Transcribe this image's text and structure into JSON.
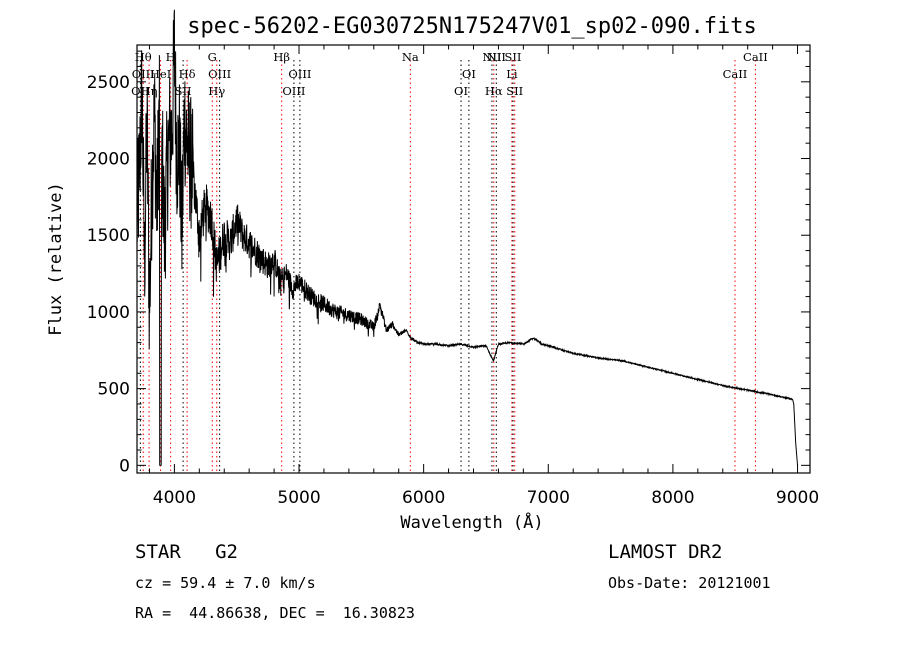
{
  "chart_data": {
    "type": "line",
    "title": "spec-56202-EG030725N175247V01_sp02-090.fits",
    "xlabel": "Wavelength (Å)",
    "ylabel": "Flux (relative)",
    "xlim": [
      3700,
      9100
    ],
    "ylim": [
      -50,
      2740
    ],
    "xticks": [
      4000,
      5000,
      6000,
      7000,
      8000,
      9000
    ],
    "yticks": [
      0,
      500,
      1000,
      1500,
      2000,
      2500
    ],
    "grid": false,
    "series": [
      {
        "x": [
          3700,
          3720,
          3740,
          3760,
          3780,
          3800,
          3820,
          3840,
          3860,
          3880,
          3890,
          3900,
          3920,
          3940,
          3960,
          3980,
          4000,
          4020,
          4040,
          4060,
          4080,
          4100,
          4150,
          4200,
          4250,
          4300,
          4340,
          4400,
          4450,
          4500,
          4550,
          4600,
          4650,
          4700,
          4750,
          4800,
          4850,
          4900,
          4950,
          5000,
          5100,
          5200,
          5300,
          5400,
          5500,
          5600,
          5650,
          5700,
          5750,
          5800,
          5860,
          5900,
          5950,
          6000,
          6100,
          6200,
          6300,
          6400,
          6500,
          6560,
          6600,
          6700,
          6800,
          6880,
          6950,
          7000,
          7200,
          7400,
          7600,
          7800,
          8000,
          8200,
          8400,
          8600,
          8800,
          8960,
          8970,
          8985,
          9000
        ],
        "y": [
          1600,
          1900,
          2450,
          1300,
          2250,
          1000,
          1850,
          2300,
          1650,
          2400,
          0,
          2100,
          1500,
          1900,
          2150,
          2150,
          2700,
          2000,
          2100,
          1500,
          2300,
          2100,
          1900,
          1500,
          1700,
          1600,
          1300,
          1500,
          1450,
          1600,
          1500,
          1450,
          1400,
          1350,
          1300,
          1350,
          1200,
          1250,
          1150,
          1200,
          1100,
          1050,
          1000,
          980,
          950,
          900,
          1050,
          880,
          920,
          850,
          880,
          830,
          800,
          790,
          790,
          780,
          790,
          770,
          780,
          680,
          790,
          800,
          790,
          830,
          790,
          780,
          730,
          700,
          680,
          640,
          600,
          560,
          520,
          490,
          460,
          430,
          400,
          150,
          0
        ],
        "noise": [
          0,
          0,
          0,
          0,
          0,
          0,
          0,
          0,
          0,
          0,
          0,
          0,
          0,
          0,
          0,
          0,
          0,
          0,
          0,
          0,
          0,
          0,
          140,
          150,
          150,
          140,
          140,
          130,
          125,
          120,
          110,
          105,
          100,
          95,
          90,
          85,
          80,
          75,
          70,
          65,
          60,
          55,
          50,
          45,
          40,
          35,
          30,
          25,
          20,
          15,
          12,
          10,
          8,
          6,
          6,
          5,
          5,
          5,
          5,
          5,
          5,
          5,
          5,
          5,
          5,
          5,
          4,
          4,
          4,
          4,
          4,
          4,
          4,
          4,
          4,
          4,
          0,
          0,
          0
        ]
      }
    ],
    "line_marks": [
      {
        "x": 3727,
        "labels": [
          "OII"
        ],
        "rows": [
          2
        ]
      },
      {
        "x": 3750,
        "labels": [
          "Hθ",
          "OIII"
        ],
        "rows": [
          0,
          1
        ]
      },
      {
        "x": 3797,
        "labels": [
          "Hη"
        ],
        "rows": [
          2
        ]
      },
      {
        "x": 3889,
        "labels": [
          "HeI"
        ],
        "rows": [
          1
        ]
      },
      {
        "x": 3970,
        "labels": [
          "H"
        ],
        "rows": [
          0
        ]
      },
      {
        "x": 4070,
        "labels": [
          "SII"
        ],
        "rows": [
          2
        ]
      },
      {
        "x": 4102,
        "labels": [
          "Hδ"
        ],
        "rows": [
          1
        ]
      },
      {
        "x": 4304,
        "labels": [
          "G"
        ],
        "rows": [
          0
        ]
      },
      {
        "x": 4340,
        "labels": [
          "Hγ"
        ],
        "rows": [
          2
        ]
      },
      {
        "x": 4363,
        "labels": [
          "OIII"
        ],
        "rows": [
          1
        ]
      },
      {
        "x": 4861,
        "labels": [
          "Hβ"
        ],
        "rows": [
          0
        ]
      },
      {
        "x": 4959,
        "labels": [
          "OIII"
        ],
        "rows": [
          2
        ]
      },
      {
        "x": 5007,
        "labels": [
          "OIII"
        ],
        "rows": [
          1
        ]
      },
      {
        "x": 5893,
        "labels": [
          "Na"
        ],
        "rows": [
          0
        ]
      },
      {
        "x": 6300,
        "labels": [
          "OI"
        ],
        "rows": [
          2
        ]
      },
      {
        "x": 6363,
        "labels": [
          "OI"
        ],
        "rows": [
          1
        ]
      },
      {
        "x": 6548,
        "labels": [
          "NII"
        ],
        "rows": [
          0
        ]
      },
      {
        "x": 6563,
        "labels": [
          "Hα"
        ],
        "rows": [
          2
        ]
      },
      {
        "x": 6583,
        "labels": [
          "NII"
        ],
        "rows": [
          0
        ]
      },
      {
        "x": 6708,
        "labels": [
          "Li"
        ],
        "rows": [
          1
        ]
      },
      {
        "x": 6717,
        "labels": [
          "SII"
        ],
        "rows": [
          0
        ]
      },
      {
        "x": 6731,
        "labels": [
          "SII"
        ],
        "rows": [
          2
        ]
      },
      {
        "x": 8498,
        "labels": [
          "CaII"
        ],
        "rows": [
          1
        ]
      },
      {
        "x": 8662,
        "labels": [
          "CaII"
        ],
        "rows": [
          0
        ]
      }
    ],
    "mark_colors": {
      "absorption": "#ff0000",
      "emission": "#000000"
    }
  },
  "info": {
    "class_line": "STAR   G2",
    "survey": "LAMOST DR2",
    "cz_line": "cz = 59.4 ± 7.0 km/s",
    "obs_date": "Obs-Date: 20121001",
    "radec_line": "RA =  44.86638, DEC =  16.30823"
  }
}
